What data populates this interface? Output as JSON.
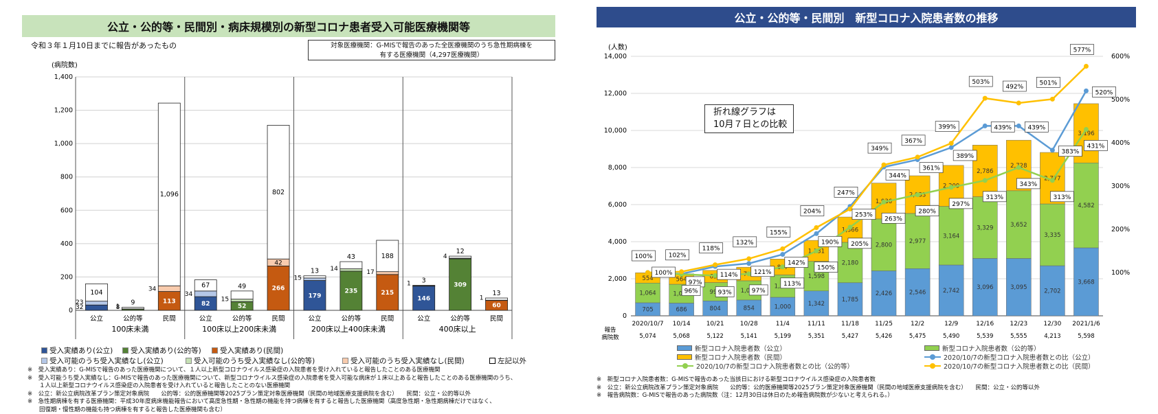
{
  "left": {
    "title": "公立・公的等・民間別・病床規模別の新型コロナ患者受入可能医療機関等",
    "subtitle": "令和３年１月10日までに報告があったもの",
    "target_box": "対象医療機関：G-MISで報告のあった全医療機関のうち急性期病棟を\n有する医療機関（4,297医療機関）",
    "legend": [
      {
        "label": "受入実績あり(公立)",
        "color": "#2f5597"
      },
      {
        "label": "受入実績あり(公的等)",
        "color": "#548235"
      },
      {
        "label": "受入実績あり(民間)",
        "color": "#c55a11"
      },
      {
        "label": "受入可能のうち受入実績なし(公立)",
        "color": "#b4c7e7"
      },
      {
        "label": "受入可能のうち受入実績なし(公的等)",
        "color": "#c5e0b4"
      },
      {
        "label": "受入可能のうち受入実績なし(民間)",
        "color": "#f8cbad"
      },
      {
        "label": "左記以外",
        "color": "#ffffff"
      }
    ],
    "notes": [
      "※　受入実績あり：G-MISで報告のあった医療機関について、１人以上新型コロナウイルス感染症の入院患者を受け入れていると報告したことのある医療機関",
      "※　受入可能うち受入実績なし：G-MISで報告のあった医療機関について、新型コロナウイルス感染症の入院患者を受入可能な病床が１床以上あると報告したことのある医療機関のうち、",
      "　　１人以上新型コロナウイルス感染症の入院患者を受け入れていると報告したことのない医療機関",
      "※　公立：新公立病院改革プラン策定対象病院　　公的等：公的医療機関等2025プラン策定対象医療機関（民間の地域医療支援病院を含む）　　民間：公立・公的等以外",
      "※　急性期病棟を有する医療機関：平成30年度病床機能報告において高度急性期・急性期の機能を持つ病棟を有すると報告した医療機関（高度急性期・急性期病棟だけではなく、",
      "　　回復期・慢性期の機能も持つ病棟を有すると報告した医療機関も含む）"
    ]
  },
  "right": {
    "title": "公立・公的等・民間別　新型コロナ入院患者数の推移",
    "callout": [
      "折れ線グラフは",
      "10月７日との比較"
    ],
    "report_label": [
      "報告",
      "病院数"
    ],
    "report_counts": [
      "5,074",
      "5,068",
      "5,122",
      "5,141",
      "5,199",
      "5,351",
      "5,427",
      "5,426",
      "5,475",
      "5,490",
      "5,539",
      "5,555",
      "4,213",
      "5,598"
    ],
    "legend": [
      {
        "label": "新型コロナ入院患者数（公立）",
        "color": "#5b9bd5",
        "kind": "bar"
      },
      {
        "label": "新型コロナ入院患者数（公的等）",
        "color": "#92d050",
        "kind": "bar"
      },
      {
        "label": "新型コロナ入院患者数（民間）",
        "color": "#ffc000",
        "kind": "bar"
      },
      {
        "label": "2020/10/7の新型コロナ入院患者数との比（公立）",
        "color": "#5b9bd5",
        "kind": "line"
      },
      {
        "label": "2020/10/7の新型コロナ入院患者数との比（公的等）",
        "color": "#92d050",
        "kind": "line"
      },
      {
        "label": "2020/10/7の新型コロナ入院患者数との比（民間）",
        "color": "#ffc000",
        "kind": "line"
      }
    ],
    "notes": [
      "※　新型コロナ入院患者数：G-MISで報告のあった当該日における新型コロナウイルス感染症の入院患者数",
      "※　公立：新公立病院改革プラン策定対象病院　　公的等：公的医療機関等2025プラン策定対象医療機関（民間の地域医療支援病院を含む）　　民間：公立・公的等以外",
      "※　報告病院数：G-MISで報告のあった病院数（注：12月30日は休日のため報告病院数が少ないと考えられる。）"
    ]
  },
  "chart_data": [
    {
      "type": "bar",
      "stacked": true,
      "ylabel": "(病院数)",
      "ylim": [
        0,
        1400
      ],
      "yticks": [
        "0",
        "200",
        "400",
        "600",
        "800",
        "1,000",
        "1,200",
        "1,400"
      ],
      "groups": [
        "100床未満",
        "100床以上200床未満",
        "200床以上400床未満",
        "400床以上"
      ],
      "categories": [
        "公立",
        "公的等",
        "民間"
      ],
      "bars": [
        {
          "group": 0,
          "cat": "公立",
          "seg": [
            32,
            23,
            104
          ],
          "labels": [
            "32",
            "23",
            "104"
          ]
        },
        {
          "group": 0,
          "cat": "公的等",
          "seg": [
            8,
            1,
            9
          ],
          "labels": [
            "8",
            "1",
            "9"
          ]
        },
        {
          "group": 0,
          "cat": "民間",
          "seg": [
            113,
            34,
            1096
          ],
          "labels": [
            "113",
            "34",
            "1,096"
          ]
        },
        {
          "group": 1,
          "cat": "公立",
          "seg": [
            82,
            34,
            67
          ],
          "labels": [
            "82",
            "34",
            "67"
          ]
        },
        {
          "group": 1,
          "cat": "公的等",
          "seg": [
            52,
            15,
            49
          ],
          "labels": [
            "52",
            "15",
            "49"
          ]
        },
        {
          "group": 1,
          "cat": "民間",
          "seg": [
            266,
            42,
            802
          ],
          "labels": [
            "266",
            "42",
            "802"
          ]
        },
        {
          "group": 2,
          "cat": "公立",
          "seg": [
            179,
            15,
            13
          ],
          "labels": [
            "179",
            "15",
            "13"
          ]
        },
        {
          "group": 2,
          "cat": "公的等",
          "seg": [
            235,
            14,
            43
          ],
          "labels": [
            "235",
            "14",
            "43"
          ]
        },
        {
          "group": 2,
          "cat": "民間",
          "seg": [
            215,
            17,
            188
          ],
          "labels": [
            "215",
            "17",
            "188"
          ]
        },
        {
          "group": 3,
          "cat": "公立",
          "seg": [
            146,
            1,
            3
          ],
          "labels": [
            "146",
            "1",
            "3"
          ]
        },
        {
          "group": 3,
          "cat": "公的等",
          "seg": [
            309,
            4,
            12
          ],
          "labels": [
            "309",
            "4",
            "12"
          ]
        },
        {
          "group": 3,
          "cat": "民間",
          "seg": [
            60,
            1,
            13
          ],
          "labels": [
            "60",
            "1",
            "13"
          ]
        }
      ]
    },
    {
      "type": "bar",
      "stacked": true,
      "ylabel": "(人数)",
      "ylim": [
        0,
        14000
      ],
      "yticks": [
        "0",
        "2,000",
        "4,000",
        "6,000",
        "8,000",
        "10,000",
        "12,000",
        "14,000"
      ],
      "y2lim": [
        0,
        600
      ],
      "y2ticks": [
        "100%",
        "200%",
        "300%",
        "400%",
        "500%",
        "600%"
      ],
      "categories": [
        "2020/10/7",
        "10/14",
        "10/21",
        "10/28",
        "11/4",
        "11/11",
        "11/18",
        "11/25",
        "12/2",
        "12/9",
        "12/16",
        "12/23",
        "12/30",
        "2021/1/6"
      ],
      "series": [
        {
          "name": "新型コロナ入院患者数（公立）",
          "values": [
            705,
            686,
            804,
            854,
            1000,
            1342,
            1785,
            2426,
            2546,
            2742,
            3096,
            3095,
            2702,
            3668
          ],
          "labels": [
            "705",
            "686",
            "804",
            "854",
            "1,000",
            "1,342",
            "1,785",
            "2,426",
            "2,546",
            "2,742",
            "3,096",
            "3,095",
            "2,702",
            "3,668"
          ]
        },
        {
          "name": "新型コロナ入院患者数（公的等）",
          "values": [
            1064,
            1017,
            991,
            1037,
            1206,
            1598,
            2180,
            2800,
            2977,
            3164,
            3329,
            3652,
            3335,
            4582
          ],
          "labels": [
            "1,064",
            "1,017",
            "991",
            "1,037",
            "1,206",
            "1,598",
            "2,180",
            "2,800",
            "2,977",
            "3,164",
            "3,329",
            "3,652",
            "3,335",
            "4,582"
          ]
        },
        {
          "name": "新型コロナ入院患者数（民間）",
          "values": [
            554,
            564,
            655,
            733,
            857,
            1131,
            1366,
            1936,
            2033,
            2209,
            2786,
            2728,
            2777,
            3196
          ],
          "labels": [
            "554",
            "564",
            "655",
            "733",
            "857",
            "1,131",
            "1,366",
            "1,936",
            "2,033",
            "2,209",
            "2,786",
            "2,728",
            "2,777",
            "3,196"
          ]
        }
      ],
      "lines": [
        {
          "name": "2020/10/7の新型コロナ入院患者数との比（公立）",
          "values": [
            100,
            97,
            114,
            121,
            142,
            190,
            253,
            344,
            361,
            389,
            439,
            439,
            383,
            520
          ],
          "labels": [
            "100%",
            "97%",
            "114%",
            "121%",
            "142%",
            "190%",
            "253%",
            "344%",
            "361%",
            "389%",
            "439%",
            "439%",
            "383%",
            "520%"
          ]
        },
        {
          "name": "2020/10/7の新型コロナ入院患者数との比（公的等）",
          "values": [
            100,
            96,
            93,
            97,
            113,
            150,
            205,
            263,
            280,
            297,
            313,
            343,
            313,
            431
          ],
          "labels": [
            "100%",
            "96%",
            "93%",
            "97%",
            "113%",
            "150%",
            "205%",
            "263%",
            "280%",
            "297%",
            "313%",
            "343%",
            "313%",
            "431%"
          ]
        },
        {
          "name": "2020/10/7の新型コロナ入院患者数との比（民間）",
          "values": [
            100,
            102,
            118,
            132,
            155,
            204,
            247,
            349,
            367,
            399,
            503,
            492,
            501,
            577
          ],
          "labels": [
            "100%",
            "102%",
            "118%",
            "132%",
            "155%",
            "204%",
            "247%",
            "349%",
            "367%",
            "399%",
            "503%",
            "492%",
            "501%",
            "577%"
          ]
        }
      ]
    }
  ]
}
